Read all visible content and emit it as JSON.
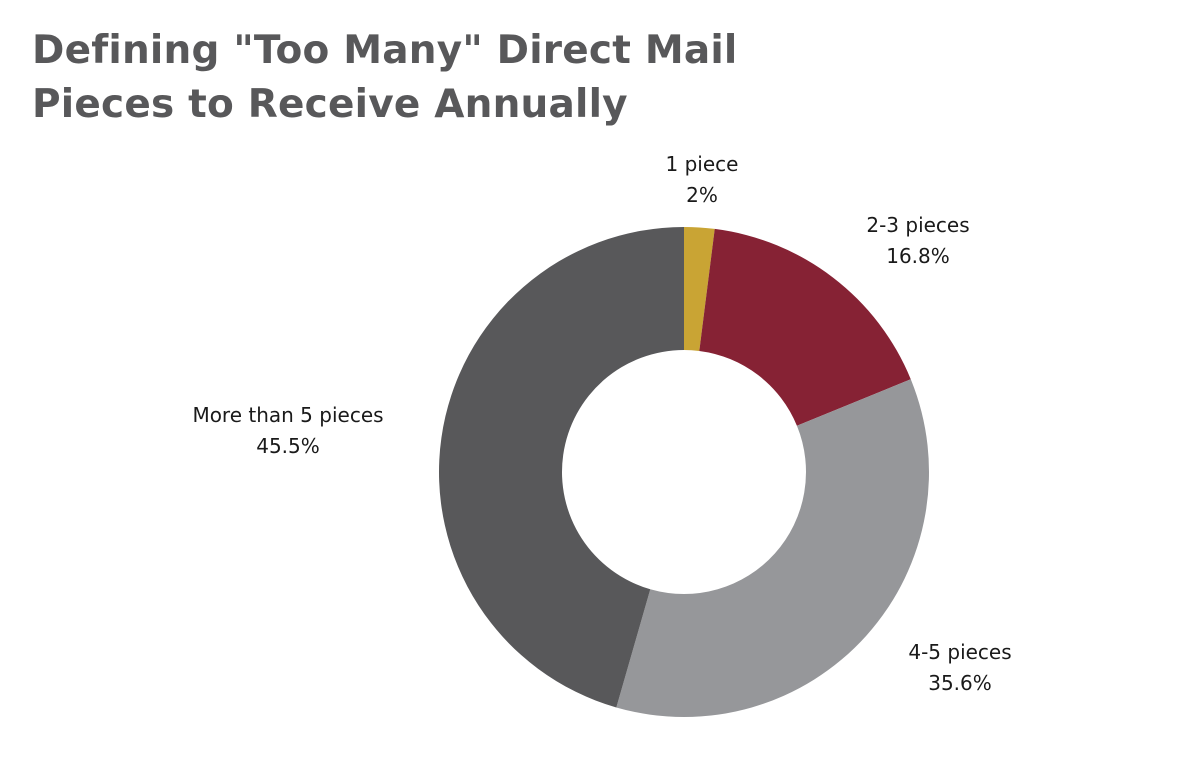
{
  "title": {
    "line1": "Defining \"Too Many\" Direct Mail",
    "line2": "Pieces to Receive Annually"
  },
  "chart_data": {
    "type": "pie",
    "variant": "donut",
    "title": "Defining \"Too Many\" Direct Mail Pieces to Receive Annually",
    "categories": [
      "1 piece",
      "2-3 pieces",
      "4-5 pieces",
      "More than 5 pieces"
    ],
    "values": [
      2,
      16.8,
      35.6,
      45.5
    ],
    "value_labels": [
      "2%",
      "16.8%",
      "35.6%",
      "45.5%"
    ],
    "unit": "%",
    "colors": [
      "#c9a434",
      "#862234",
      "#96979a",
      "#58585a"
    ],
    "start_angle": "12 o'clock",
    "direction": "clockwise",
    "legend": "none"
  }
}
